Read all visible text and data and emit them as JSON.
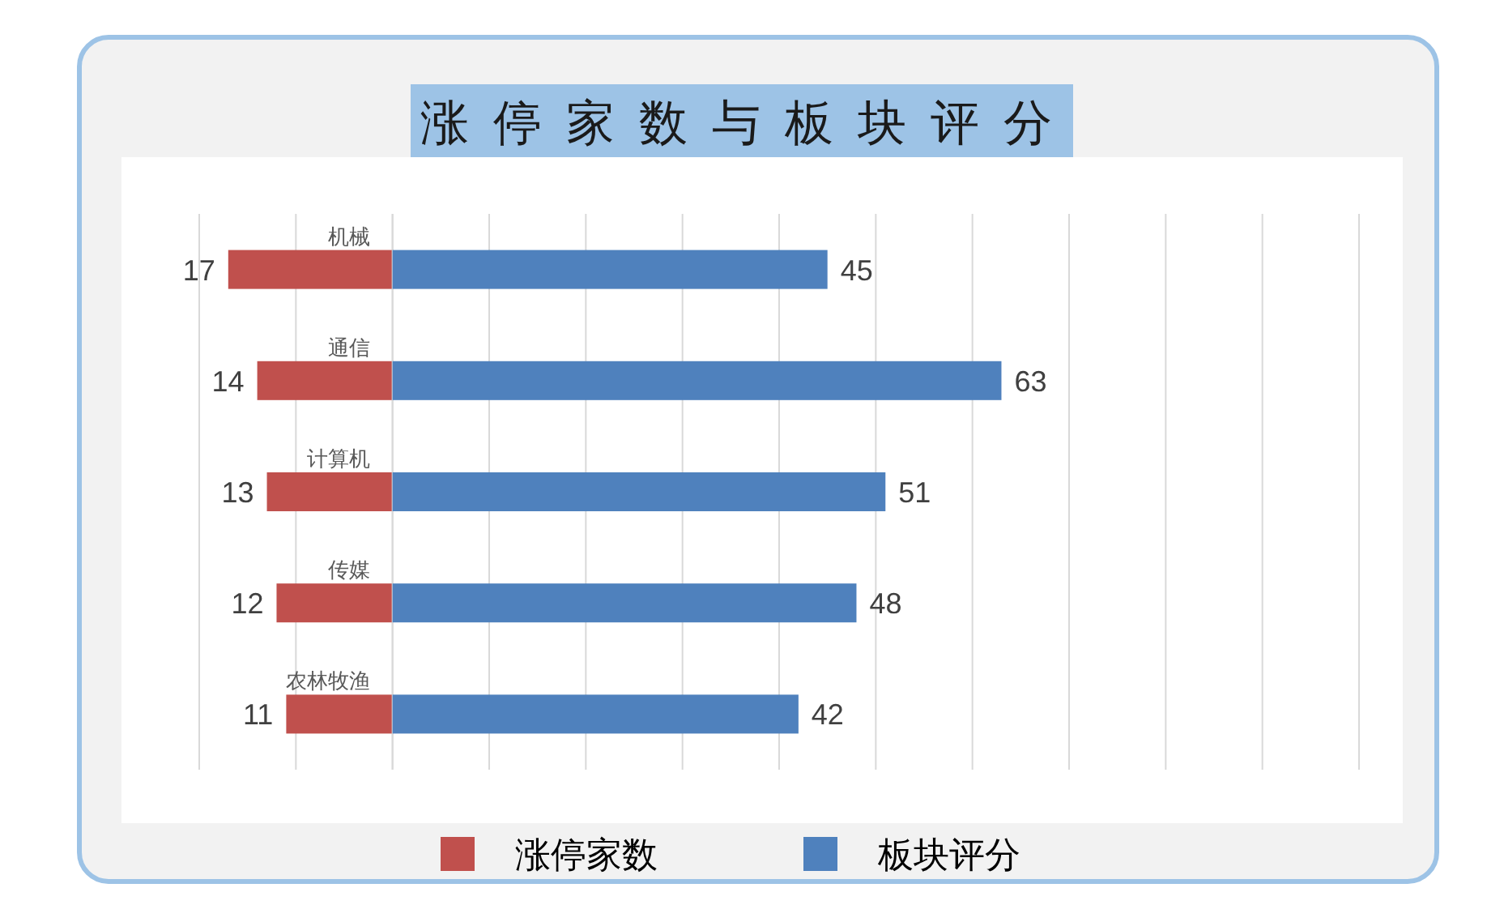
{
  "chart_data": [
    {
      "type": "bar",
      "orientation": "horizontal",
      "categories": [
        "机械",
        "通信",
        "计算机",
        "传媒",
        "农林牧渔"
      ],
      "series": [
        {
          "name": "涨停家数",
          "color": "#c0504d",
          "values": [
            17,
            14,
            13,
            12,
            11
          ],
          "value_labels": [
            "17",
            "14",
            "13",
            "12",
            "11"
          ]
        }
      ],
      "xlim": [
        20,
        0
      ],
      "xticks": [
        {
          "value": 20,
          "label": null
        },
        {
          "value": 10,
          "label": null
        },
        {
          "value": 0,
          "label": null
        }
      ],
      "grid": "x",
      "legend": "bottom"
    },
    {
      "type": "bar",
      "orientation": "horizontal",
      "title": "涨停家数与板块评分",
      "categories": [
        null,
        null,
        null,
        null,
        null
      ],
      "series": [
        {
          "name": "板块评分",
          "color": "#4f81bd",
          "values": [
            45,
            63,
            51,
            48,
            42
          ],
          "value_labels": [
            "45",
            "63",
            "51",
            "48",
            "42"
          ]
        }
      ],
      "xlim": [
        0,
        100
      ],
      "xticks": [
        {
          "value": 0,
          "label": null
        },
        {
          "value": 10,
          "label": null
        },
        {
          "value": 20,
          "label": null
        },
        {
          "value": 30,
          "label": null
        },
        {
          "value": 40,
          "label": null
        },
        {
          "value": 50,
          "label": null
        },
        {
          "value": 60,
          "label": null
        },
        {
          "value": 70,
          "label": null
        },
        {
          "value": 80,
          "label": null
        },
        {
          "value": 90,
          "label": null
        },
        {
          "value": 100,
          "label": null
        }
      ],
      "grid": "x",
      "legend": "bottom"
    }
  ]
}
